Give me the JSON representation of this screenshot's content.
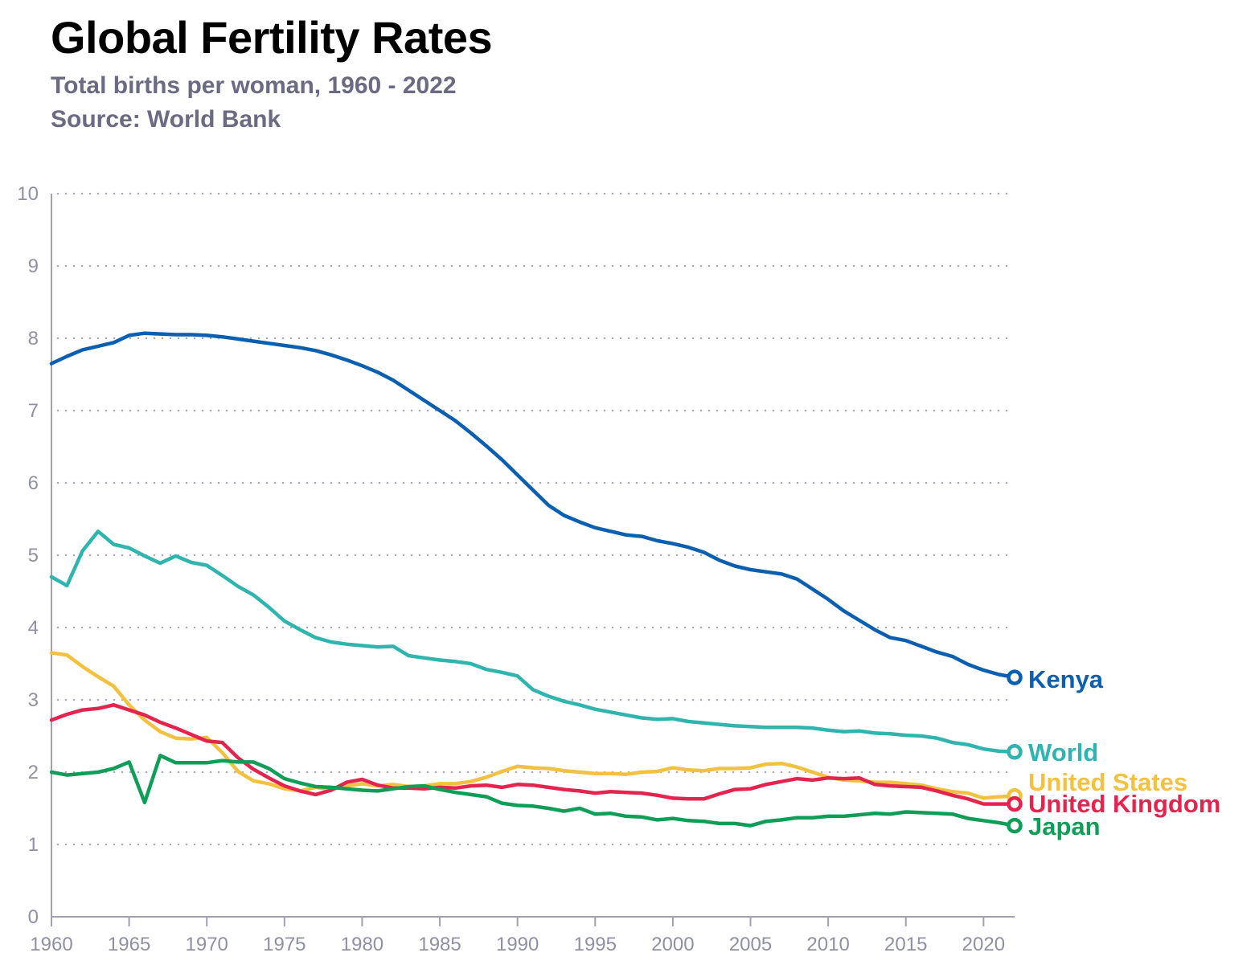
{
  "chart_data": {
    "type": "line",
    "title": "Global Fertility Rates",
    "subtitle": "Total births per woman, 1960 - 2022",
    "source": "Source: World Bank",
    "xlabel": "",
    "ylabel": "",
    "xlim": [
      1960,
      2022
    ],
    "ylim": [
      0,
      10
    ],
    "yticks": [
      0,
      1,
      2,
      3,
      4,
      5,
      6,
      7,
      8,
      9,
      10
    ],
    "xticks": [
      1960,
      1965,
      1970,
      1975,
      1980,
      1985,
      1990,
      1995,
      2000,
      2005,
      2010,
      2015,
      2020
    ],
    "grid": "horizontal dotted",
    "x": [
      1960,
      1961,
      1962,
      1963,
      1964,
      1965,
      1966,
      1967,
      1968,
      1969,
      1970,
      1971,
      1972,
      1973,
      1974,
      1975,
      1976,
      1977,
      1978,
      1979,
      1980,
      1981,
      1982,
      1983,
      1984,
      1985,
      1986,
      1987,
      1988,
      1989,
      1990,
      1991,
      1992,
      1993,
      1994,
      1995,
      1996,
      1997,
      1998,
      1999,
      2000,
      2001,
      2002,
      2003,
      2004,
      2005,
      2006,
      2007,
      2008,
      2009,
      2010,
      2011,
      2012,
      2013,
      2014,
      2015,
      2016,
      2017,
      2018,
      2019,
      2020,
      2021,
      2022
    ],
    "series": [
      {
        "name": "Kenya",
        "color": "#0a5fb0",
        "values": [
          7.65,
          7.75,
          7.84,
          7.89,
          7.94,
          8.04,
          8.07,
          8.06,
          8.05,
          8.05,
          8.04,
          8.02,
          7.99,
          7.96,
          7.93,
          7.9,
          7.87,
          7.83,
          7.77,
          7.7,
          7.62,
          7.53,
          7.42,
          7.28,
          7.14,
          7.0,
          6.86,
          6.69,
          6.51,
          6.32,
          6.11,
          5.9,
          5.69,
          5.55,
          5.46,
          5.38,
          5.33,
          5.28,
          5.26,
          5.2,
          5.16,
          5.11,
          5.04,
          4.93,
          4.85,
          4.8,
          4.77,
          4.74,
          4.67,
          4.53,
          4.39,
          4.23,
          4.1,
          3.97,
          3.86,
          3.82,
          3.74,
          3.66,
          3.6,
          3.49,
          3.41,
          3.35,
          3.31
        ]
      },
      {
        "name": "World",
        "color": "#2fb5ae",
        "values": [
          4.7,
          4.58,
          5.06,
          5.33,
          5.15,
          5.1,
          4.99,
          4.89,
          4.99,
          4.9,
          4.86,
          4.72,
          4.57,
          4.45,
          4.28,
          4.09,
          3.97,
          3.86,
          3.8,
          3.77,
          3.75,
          3.73,
          3.74,
          3.61,
          3.58,
          3.55,
          3.53,
          3.5,
          3.42,
          3.38,
          3.33,
          3.14,
          3.05,
          2.98,
          2.93,
          2.87,
          2.83,
          2.79,
          2.75,
          2.73,
          2.74,
          2.7,
          2.68,
          2.66,
          2.64,
          2.63,
          2.62,
          2.62,
          2.62,
          2.61,
          2.58,
          2.56,
          2.57,
          2.54,
          2.53,
          2.51,
          2.5,
          2.47,
          2.41,
          2.38,
          2.32,
          2.29,
          2.28
        ]
      },
      {
        "name": "United States",
        "color": "#f3c140",
        "values": [
          3.65,
          3.62,
          3.46,
          3.32,
          3.19,
          2.93,
          2.72,
          2.56,
          2.47,
          2.46,
          2.48,
          2.27,
          2.01,
          1.88,
          1.84,
          1.77,
          1.74,
          1.79,
          1.76,
          1.81,
          1.84,
          1.81,
          1.83,
          1.8,
          1.81,
          1.84,
          1.84,
          1.87,
          1.93,
          2.01,
          2.08,
          2.06,
          2.05,
          2.02,
          2.0,
          1.98,
          1.98,
          1.97,
          2.0,
          2.01,
          2.06,
          2.03,
          2.02,
          2.05,
          2.05,
          2.06,
          2.11,
          2.12,
          2.07,
          2.0,
          1.93,
          1.89,
          1.88,
          1.86,
          1.86,
          1.84,
          1.82,
          1.77,
          1.73,
          1.71,
          1.64,
          1.66,
          1.67
        ]
      },
      {
        "name": "United Kingdom",
        "color": "#e4244e",
        "values": [
          2.72,
          2.8,
          2.86,
          2.88,
          2.93,
          2.86,
          2.79,
          2.69,
          2.61,
          2.52,
          2.43,
          2.41,
          2.2,
          2.04,
          1.92,
          1.81,
          1.74,
          1.69,
          1.75,
          1.86,
          1.9,
          1.82,
          1.78,
          1.78,
          1.77,
          1.79,
          1.78,
          1.81,
          1.82,
          1.79,
          1.83,
          1.82,
          1.79,
          1.76,
          1.74,
          1.71,
          1.73,
          1.72,
          1.71,
          1.68,
          1.64,
          1.63,
          1.63,
          1.7,
          1.76,
          1.77,
          1.83,
          1.87,
          1.91,
          1.89,
          1.92,
          1.91,
          1.92,
          1.83,
          1.81,
          1.8,
          1.79,
          1.74,
          1.68,
          1.63,
          1.56,
          1.56,
          1.56
        ]
      },
      {
        "name": "Japan",
        "color": "#0f9d58",
        "values": [
          2.0,
          1.96,
          1.98,
          2.0,
          2.05,
          2.14,
          1.58,
          2.23,
          2.13,
          2.13,
          2.13,
          2.16,
          2.14,
          2.14,
          2.05,
          1.91,
          1.85,
          1.8,
          1.79,
          1.77,
          1.75,
          1.74,
          1.77,
          1.8,
          1.81,
          1.76,
          1.72,
          1.69,
          1.66,
          1.57,
          1.54,
          1.53,
          1.5,
          1.46,
          1.5,
          1.42,
          1.43,
          1.39,
          1.38,
          1.34,
          1.36,
          1.33,
          1.32,
          1.29,
          1.29,
          1.26,
          1.32,
          1.34,
          1.37,
          1.37,
          1.39,
          1.39,
          1.41,
          1.43,
          1.42,
          1.45,
          1.44,
          1.43,
          1.42,
          1.36,
          1.33,
          1.3,
          1.26
        ]
      }
    ],
    "legend": "direct labels at line ends"
  }
}
